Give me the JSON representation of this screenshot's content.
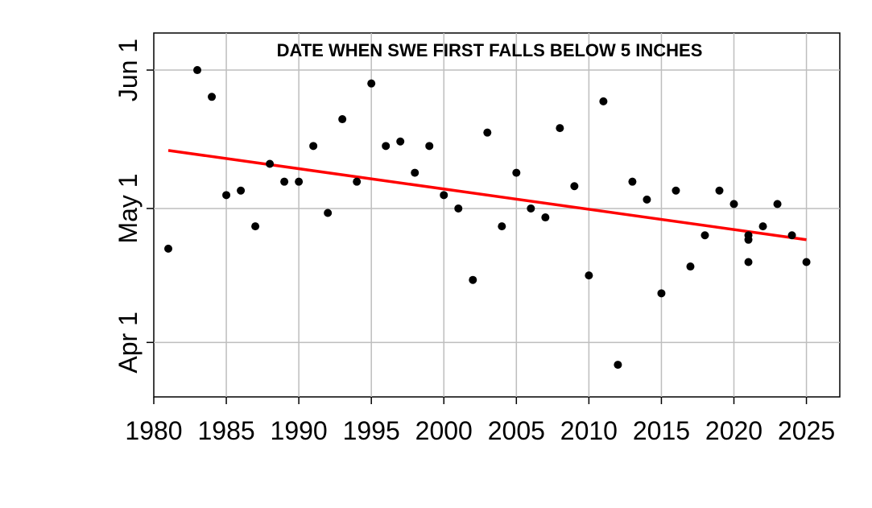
{
  "chart_data": {
    "type": "scatter",
    "title": "DATE WHEN SWE FIRST FALLS BELOW 5 INCHES",
    "xlabel": "",
    "ylabel": "",
    "x_ticks": [
      1980,
      1985,
      1990,
      1995,
      2000,
      2005,
      2010,
      2015,
      2020,
      2025
    ],
    "y_ticks": [
      {
        "label": "Apr 1",
        "day_of_year": 91
      },
      {
        "label": "May 1",
        "day_of_year": 121
      },
      {
        "label": "Jun 1",
        "day_of_year": 152
      }
    ],
    "xlim": [
      1980,
      1982.0
    ],
    "xlim_note": "",
    "ylim_day_of_year": [
      78.8,
      160.3
    ],
    "grid": true,
    "points": [
      {
        "year": 1981,
        "date": "Apr 22"
      },
      {
        "year": 1983,
        "date": "Jun 1"
      },
      {
        "year": 1984,
        "date": "May 26"
      },
      {
        "year": 1985,
        "date": "May 4"
      },
      {
        "year": 1986,
        "date": "May 5"
      },
      {
        "year": 1987,
        "date": "Apr 27"
      },
      {
        "year": 1988,
        "date": "May 11"
      },
      {
        "year": 1989,
        "date": "May 7"
      },
      {
        "year": 1990,
        "date": "May 7"
      },
      {
        "year": 1991,
        "date": "May 15"
      },
      {
        "year": 1992,
        "date": "Apr 30"
      },
      {
        "year": 1993,
        "date": "May 21"
      },
      {
        "year": 1994,
        "date": "May 7"
      },
      {
        "year": 1995,
        "date": "May 29"
      },
      {
        "year": 1996,
        "date": "May 15"
      },
      {
        "year": 1997,
        "date": "May 16"
      },
      {
        "year": 1998,
        "date": "May 9"
      },
      {
        "year": 1999,
        "date": "May 15"
      },
      {
        "year": 2000,
        "date": "May 4"
      },
      {
        "year": 2001,
        "date": "May 1"
      },
      {
        "year": 2002,
        "date": "Apr 15"
      },
      {
        "year": 2003,
        "date": "May 18"
      },
      {
        "year": 2004,
        "date": "Apr 27"
      },
      {
        "year": 2005,
        "date": "May 9"
      },
      {
        "year": 2006,
        "date": "May 1"
      },
      {
        "year": 2007,
        "date": "Apr 29"
      },
      {
        "year": 2008,
        "date": "May 19"
      },
      {
        "year": 2009,
        "date": "May 6"
      },
      {
        "year": 2010,
        "date": "Apr 16"
      },
      {
        "year": 2011,
        "date": "May 25"
      },
      {
        "year": 2012,
        "date": "Mar 27"
      },
      {
        "year": 2013,
        "date": "May 7"
      },
      {
        "year": 2014,
        "date": "May 3"
      },
      {
        "year": 2015,
        "date": "Apr 12"
      },
      {
        "year": 2016,
        "date": "May 5"
      },
      {
        "year": 2017,
        "date": "Apr 18"
      },
      {
        "year": 2018,
        "date": "Apr 25"
      },
      {
        "year": 2019,
        "date": "May 5"
      },
      {
        "year": 2020,
        "date": "May 2"
      },
      {
        "year": 2021,
        "date": "Apr 25"
      },
      {
        "year": 2021,
        "date": "Apr 24"
      },
      {
        "year": 2021,
        "date": "Apr 19"
      },
      {
        "year": 2022,
        "date": "Apr 27"
      },
      {
        "year": 2023,
        "date": "May 2"
      },
      {
        "year": 2024,
        "date": "Apr 25"
      },
      {
        "year": 2025,
        "date": "Apr 19"
      }
    ],
    "trend": {
      "start": {
        "year": 1981,
        "date": "May 14"
      },
      "end": {
        "year": 2025,
        "date": "Apr 24"
      }
    },
    "colors": {
      "points": "#000000",
      "trend": "#ff0000",
      "grid": "#bebebe",
      "axis": "#000000"
    }
  }
}
